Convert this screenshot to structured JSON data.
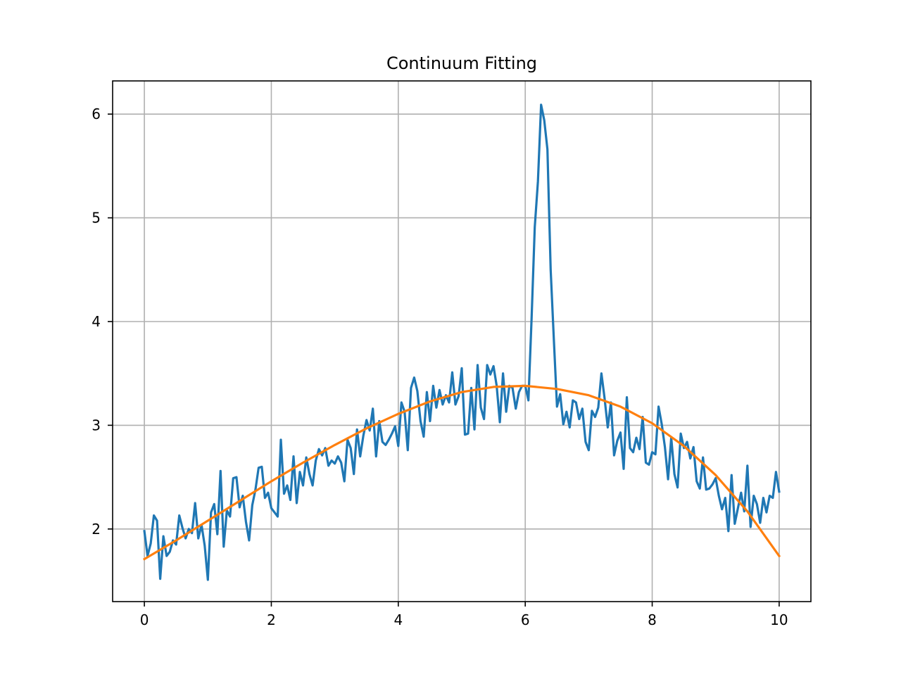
{
  "chart_data": {
    "type": "line",
    "title": "Continuum Fitting",
    "xlabel": "",
    "ylabel": "",
    "xlim": [
      -0.5,
      10.5
    ],
    "ylim": [
      1.3,
      6.32
    ],
    "grid": true,
    "legend": "none",
    "x_ticks": [
      "0",
      "2",
      "4",
      "6",
      "8",
      "10"
    ],
    "y_ticks": [
      "2",
      "3",
      "4",
      "5",
      "6"
    ],
    "series": [
      {
        "color": "#1f77b4",
        "x": [
          0.0,
          0.05,
          0.1,
          0.15,
          0.2,
          0.25,
          0.3,
          0.35,
          0.4,
          0.45,
          0.5,
          0.55,
          0.6,
          0.65,
          0.7,
          0.75,
          0.8,
          0.85,
          0.9,
          0.95,
          1.0,
          1.05,
          1.1,
          1.15,
          1.2,
          1.25,
          1.3,
          1.35,
          1.4,
          1.45,
          1.5,
          1.55,
          1.6,
          1.65,
          1.7,
          1.75,
          1.8,
          1.85,
          1.9,
          1.95,
          2.0,
          2.05,
          2.1,
          2.15,
          2.2,
          2.25,
          2.3,
          2.35,
          2.4,
          2.45,
          2.5,
          2.55,
          2.6,
          2.65,
          2.7,
          2.75,
          2.8,
          2.85,
          2.9,
          2.95,
          3.0,
          3.05,
          3.1,
          3.15,
          3.2,
          3.25,
          3.3,
          3.35,
          3.4,
          3.45,
          3.5,
          3.55,
          3.6,
          3.65,
          3.7,
          3.75,
          3.8,
          3.85,
          3.9,
          3.95,
          4.0,
          4.05,
          4.1,
          4.15,
          4.2,
          4.25,
          4.3,
          4.35,
          4.4,
          4.45,
          4.5,
          4.55,
          4.6,
          4.65,
          4.7,
          4.75,
          4.8,
          4.85,
          4.9,
          4.95,
          5.0,
          5.05,
          5.1,
          5.15,
          5.2,
          5.25,
          5.3,
          5.35,
          5.4,
          5.45,
          5.5,
          5.55,
          5.6,
          5.65,
          5.7,
          5.75,
          5.8,
          5.85,
          5.9,
          5.95,
          6.0,
          6.05,
          6.1,
          6.15,
          6.2,
          6.25,
          6.3,
          6.35,
          6.4,
          6.45,
          6.5,
          6.55,
          6.6,
          6.65,
          6.7,
          6.75,
          6.8,
          6.85,
          6.9,
          6.95,
          7.0,
          7.05,
          7.1,
          7.15,
          7.2,
          7.25,
          7.3,
          7.35,
          7.4,
          7.45,
          7.5,
          7.55,
          7.6,
          7.65,
          7.7,
          7.75,
          7.8,
          7.85,
          7.9,
          7.95,
          8.0,
          8.05,
          8.1,
          8.15,
          8.2,
          8.25,
          8.3,
          8.35,
          8.4,
          8.45,
          8.5,
          8.55,
          8.6,
          8.65,
          8.7,
          8.75,
          8.8,
          8.85,
          8.9,
          8.95,
          9.0,
          9.05,
          9.1,
          9.15,
          9.2,
          9.25,
          9.3,
          9.35,
          9.4,
          9.45,
          9.5,
          9.55,
          9.6,
          9.65,
          9.7,
          9.75,
          9.8,
          9.85,
          9.9,
          9.95,
          10.0
        ],
        "y": [
          1.98,
          1.74,
          1.86,
          2.13,
          2.08,
          1.52,
          1.93,
          1.74,
          1.78,
          1.89,
          1.85,
          2.13,
          2.01,
          1.91,
          2.0,
          1.96,
          2.25,
          1.91,
          2.04,
          1.84,
          1.51,
          2.16,
          2.24,
          1.95,
          2.56,
          1.83,
          2.18,
          2.12,
          2.49,
          2.5,
          2.21,
          2.32,
          2.07,
          1.89,
          2.23,
          2.38,
          2.59,
          2.6,
          2.3,
          2.35,
          2.2,
          2.16,
          2.12,
          2.86,
          2.34,
          2.42,
          2.28,
          2.7,
          2.25,
          2.55,
          2.42,
          2.69,
          2.53,
          2.42,
          2.66,
          2.77,
          2.71,
          2.78,
          2.61,
          2.66,
          2.63,
          2.7,
          2.64,
          2.46,
          2.86,
          2.78,
          2.53,
          2.96,
          2.7,
          2.9,
          3.05,
          2.95,
          3.16,
          2.7,
          3.04,
          2.84,
          2.81,
          2.86,
          2.92,
          2.99,
          2.8,
          3.22,
          3.13,
          2.76,
          3.36,
          3.46,
          3.33,
          3.04,
          2.89,
          3.32,
          3.04,
          3.38,
          3.17,
          3.34,
          3.2,
          3.29,
          3.22,
          3.51,
          3.2,
          3.28,
          3.55,
          2.91,
          2.92,
          3.36,
          2.96,
          3.58,
          3.17,
          3.06,
          3.58,
          3.49,
          3.57,
          3.38,
          3.03,
          3.5,
          3.13,
          3.38,
          3.36,
          3.16,
          3.32,
          3.38,
          3.38,
          3.24,
          4.03,
          4.91,
          5.35,
          6.09,
          5.94,
          5.66,
          4.5,
          3.83,
          3.18,
          3.3,
          3.01,
          3.13,
          2.98,
          3.24,
          3.22,
          3.06,
          3.16,
          2.84,
          2.76,
          3.14,
          3.08,
          3.17,
          3.5,
          3.26,
          2.98,
          3.22,
          2.71,
          2.85,
          2.93,
          2.58,
          3.27,
          2.78,
          2.74,
          2.88,
          2.77,
          3.08,
          2.64,
          2.62,
          2.74,
          2.72,
          3.18,
          3.01,
          2.79,
          2.48,
          2.88,
          2.53,
          2.4,
          2.92,
          2.78,
          2.84,
          2.68,
          2.79,
          2.46,
          2.39,
          2.69,
          2.38,
          2.39,
          2.43,
          2.49,
          2.32,
          2.19,
          2.3,
          1.98,
          2.52,
          2.05,
          2.2,
          2.35,
          2.17,
          2.61,
          2.02,
          2.32,
          2.24,
          2.06,
          2.3,
          2.16,
          2.32,
          2.3,
          2.55,
          2.36
        ]
      },
      {
        "color": "#ff7f0e",
        "x": [
          0.0,
          0.5,
          1.0,
          1.5,
          2.0,
          2.5,
          3.0,
          3.5,
          4.0,
          4.5,
          5.0,
          5.5,
          6.0,
          6.5,
          7.0,
          7.5,
          8.0,
          8.5,
          9.0,
          9.5,
          10.0
        ],
        "y": [
          1.71,
          1.89,
          2.08,
          2.27,
          2.46,
          2.64,
          2.81,
          2.97,
          3.11,
          3.23,
          3.32,
          3.37,
          3.38,
          3.35,
          3.29,
          3.18,
          3.02,
          2.8,
          2.52,
          2.17,
          1.74
        ]
      }
    ]
  }
}
